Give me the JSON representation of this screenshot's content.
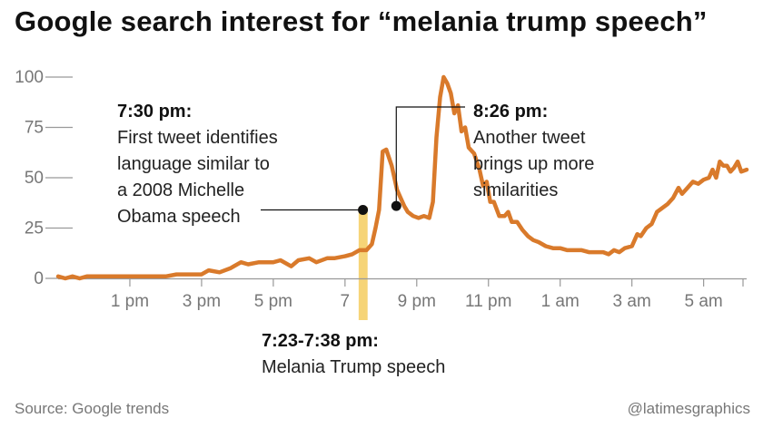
{
  "title": "Google search interest for “melania trump speech”",
  "source": "Source: Google trends",
  "credit": "@latimesgraphics",
  "colors": {
    "line": "#d97a2b",
    "highlight": "#f6d477",
    "axis": "#999999",
    "text": "#111111",
    "muted": "#777777"
  },
  "chart_data": {
    "type": "line",
    "title": "Google search interest for “melania trump speech”",
    "xlabel": "",
    "ylabel": "",
    "ylim": [
      0,
      100
    ],
    "xlim": [
      11.0,
      30.2
    ],
    "y_ticks": [
      0,
      25,
      50,
      75,
      100
    ],
    "x_ticks": [
      {
        "x": 13,
        "label": "1 pm"
      },
      {
        "x": 15,
        "label": "3 pm"
      },
      {
        "x": 17,
        "label": "5 pm"
      },
      {
        "x": 19,
        "label": "7"
      },
      {
        "x": 21,
        "label": "9 pm"
      },
      {
        "x": 23,
        "label": "11 pm"
      },
      {
        "x": 25,
        "label": "1 am"
      },
      {
        "x": 27,
        "label": "3 am"
      },
      {
        "x": 29,
        "label": "5 am"
      }
    ],
    "x_unit": "hour of day (24h clock, values past 24 are the next morning)",
    "grid": false,
    "series": [
      {
        "points": [
          [
            11.0,
            1
          ],
          [
            11.2,
            0
          ],
          [
            11.4,
            1
          ],
          [
            11.6,
            0
          ],
          [
            11.8,
            1
          ],
          [
            12.0,
            1
          ],
          [
            12.5,
            1
          ],
          [
            13.0,
            1
          ],
          [
            13.5,
            1
          ],
          [
            14.0,
            1
          ],
          [
            14.3,
            2
          ],
          [
            14.7,
            2
          ],
          [
            15.0,
            2
          ],
          [
            15.2,
            4
          ],
          [
            15.5,
            3
          ],
          [
            15.8,
            5
          ],
          [
            16.1,
            8
          ],
          [
            16.3,
            7
          ],
          [
            16.6,
            8
          ],
          [
            17.0,
            8
          ],
          [
            17.2,
            9
          ],
          [
            17.5,
            6
          ],
          [
            17.7,
            9
          ],
          [
            18.0,
            10
          ],
          [
            18.2,
            8
          ],
          [
            18.5,
            10
          ],
          [
            18.7,
            10
          ],
          [
            19.0,
            11
          ],
          [
            19.2,
            12
          ],
          [
            19.4,
            14
          ],
          [
            19.6,
            14
          ],
          [
            19.75,
            17
          ],
          [
            19.85,
            25
          ],
          [
            19.95,
            34
          ],
          [
            20.05,
            63
          ],
          [
            20.15,
            64
          ],
          [
            20.3,
            56
          ],
          [
            20.45,
            44
          ],
          [
            20.55,
            40
          ],
          [
            20.65,
            36
          ],
          [
            20.75,
            33
          ],
          [
            20.9,
            31
          ],
          [
            21.05,
            30
          ],
          [
            21.2,
            31
          ],
          [
            21.35,
            30
          ],
          [
            21.45,
            38
          ],
          [
            21.55,
            70
          ],
          [
            21.65,
            90
          ],
          [
            21.75,
            100
          ],
          [
            21.85,
            97
          ],
          [
            21.95,
            92
          ],
          [
            22.05,
            82
          ],
          [
            22.15,
            86
          ],
          [
            22.25,
            73
          ],
          [
            22.35,
            75
          ],
          [
            22.45,
            65
          ],
          [
            22.6,
            62
          ],
          [
            22.75,
            54
          ],
          [
            22.85,
            46
          ],
          [
            22.95,
            48
          ],
          [
            23.05,
            38
          ],
          [
            23.15,
            38
          ],
          [
            23.3,
            31
          ],
          [
            23.45,
            31
          ],
          [
            23.55,
            33
          ],
          [
            23.65,
            28
          ],
          [
            23.8,
            28
          ],
          [
            23.95,
            24
          ],
          [
            24.1,
            21
          ],
          [
            24.25,
            19
          ],
          [
            24.4,
            18
          ],
          [
            24.6,
            16
          ],
          [
            24.8,
            15
          ],
          [
            25.0,
            15
          ],
          [
            25.2,
            14
          ],
          [
            25.4,
            14
          ],
          [
            25.6,
            14
          ],
          [
            25.8,
            13
          ],
          [
            26.0,
            13
          ],
          [
            26.2,
            13
          ],
          [
            26.35,
            12
          ],
          [
            26.5,
            14
          ],
          [
            26.65,
            13
          ],
          [
            26.8,
            15
          ],
          [
            27.0,
            16
          ],
          [
            27.15,
            22
          ],
          [
            27.25,
            21
          ],
          [
            27.4,
            25
          ],
          [
            27.55,
            27
          ],
          [
            27.7,
            33
          ],
          [
            27.85,
            35
          ],
          [
            28.0,
            37
          ],
          [
            28.15,
            40
          ],
          [
            28.3,
            45
          ],
          [
            28.4,
            42
          ],
          [
            28.55,
            45
          ],
          [
            28.7,
            48
          ],
          [
            28.85,
            47
          ],
          [
            29.0,
            49
          ],
          [
            29.15,
            50
          ],
          [
            29.25,
            54
          ],
          [
            29.35,
            50
          ],
          [
            29.45,
            58
          ],
          [
            29.55,
            56
          ],
          [
            29.65,
            56
          ],
          [
            29.75,
            53
          ],
          [
            29.85,
            55
          ],
          [
            29.95,
            58
          ],
          [
            30.05,
            53
          ],
          [
            30.2,
            54
          ]
        ]
      }
    ],
    "highlight_band": {
      "x0": 19.38,
      "x1": 19.63
    },
    "annotations": [
      {
        "time": "7:30 pm:",
        "lines": [
          "First tweet identifies",
          "language similar to",
          "a 2008 Michelle",
          "Obama speech"
        ],
        "x": 19.5,
        "y": 34
      },
      {
        "time": "8:26 pm:",
        "lines": [
          "Another tweet",
          "brings up more",
          "similarities"
        ],
        "x": 20.43,
        "y": 36
      },
      {
        "time": "7:23-7:38 pm:",
        "lines": [
          "Melania Trump speech"
        ]
      }
    ]
  }
}
